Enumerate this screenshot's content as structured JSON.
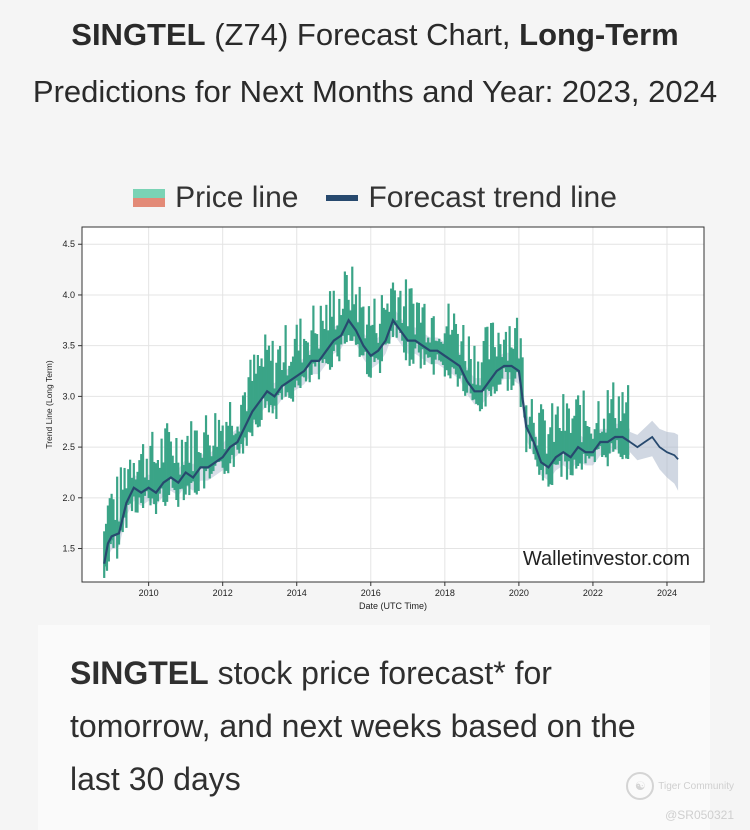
{
  "header": {
    "title_bold_1": "SINGTEL",
    "title_normal_1": " (Z74) Forecast Chart, ",
    "title_bold_2": "Long-Term",
    "title_normal_2": " Predictions for Next Months and Year: 2023, 2024"
  },
  "legend": {
    "price_label": "Price line",
    "forecast_label": "Forecast trend line"
  },
  "colors": {
    "price_up": "#7ad3b5",
    "price_down": "#e38a77",
    "forecast": "#27496e",
    "band": "#a9b6cb",
    "price_green": "#3aa487"
  },
  "chart_data": {
    "type": "line",
    "xlabel": "Date (UTC Time)",
    "ylabel": "Trend Line (Long Term)",
    "xlim": [
      2008.2,
      2025.0
    ],
    "ylim": [
      1.17,
      4.67
    ],
    "x_ticks": [
      2010,
      2012,
      2014,
      2016,
      2018,
      2020,
      2022,
      2024
    ],
    "y_ticks": [
      1.5,
      2.0,
      2.5,
      3.0,
      3.5,
      4.0,
      4.5
    ],
    "watermark": "Walletinvestor.com",
    "grid": true,
    "series": [
      {
        "name": "Price line",
        "x": [
          2008.8,
          2008.9,
          2009.0,
          2009.2,
          2009.4,
          2009.6,
          2009.8,
          2010.0,
          2010.2,
          2010.4,
          2010.6,
          2010.8,
          2011.0,
          2011.2,
          2011.4,
          2011.6,
          2011.8,
          2012.0,
          2012.2,
          2012.4,
          2012.6,
          2012.8,
          2013.0,
          2013.2,
          2013.4,
          2013.6,
          2013.8,
          2014.0,
          2014.2,
          2014.4,
          2014.6,
          2014.8,
          2015.0,
          2015.2,
          2015.4,
          2015.6,
          2015.8,
          2016.0,
          2016.2,
          2016.4,
          2016.6,
          2016.8,
          2017.0,
          2017.2,
          2017.4,
          2017.6,
          2017.8,
          2018.0,
          2018.2,
          2018.4,
          2018.6,
          2018.8,
          2019.0,
          2019.2,
          2019.4,
          2019.6,
          2019.8,
          2020.0,
          2020.2,
          2020.4,
          2020.6,
          2020.8,
          2021.0,
          2021.2,
          2021.4,
          2021.6,
          2021.8,
          2022.0,
          2022.2,
          2022.4,
          2022.6,
          2022.8,
          2023.0
        ],
        "values": [
          1.35,
          1.55,
          1.62,
          1.65,
          1.95,
          2.1,
          2.05,
          2.1,
          2.05,
          2.15,
          2.2,
          2.15,
          2.25,
          2.2,
          2.3,
          2.3,
          2.35,
          2.4,
          2.5,
          2.55,
          2.7,
          2.85,
          2.95,
          3.05,
          3.0,
          3.1,
          3.15,
          3.2,
          3.25,
          3.35,
          3.35,
          3.45,
          3.55,
          3.6,
          3.75,
          3.65,
          3.5,
          3.4,
          3.45,
          3.55,
          3.75,
          3.65,
          3.55,
          3.55,
          3.5,
          3.45,
          3.45,
          3.4,
          3.35,
          3.3,
          3.15,
          3.05,
          3.05,
          3.15,
          3.25,
          3.3,
          3.3,
          3.25,
          2.7,
          2.55,
          2.35,
          2.3,
          2.4,
          2.45,
          2.4,
          2.5,
          2.45,
          2.45,
          2.55,
          2.55,
          2.6,
          2.6,
          2.55
        ]
      },
      {
        "name": "Forecast trend line",
        "x": [
          2023.0,
          2023.2,
          2023.4,
          2023.6,
          2023.8,
          2024.0,
          2024.2,
          2024.3
        ],
        "values": [
          2.55,
          2.5,
          2.55,
          2.6,
          2.5,
          2.45,
          2.42,
          2.38
        ]
      }
    ]
  },
  "bottom": {
    "text_bold": "SINGTEL",
    "text_rest": " stock price forecast* for tomorrow, and next weeks based on the last 30 days"
  },
  "watermark": {
    "brand": "Tiger Community",
    "user": "@SR050321"
  }
}
